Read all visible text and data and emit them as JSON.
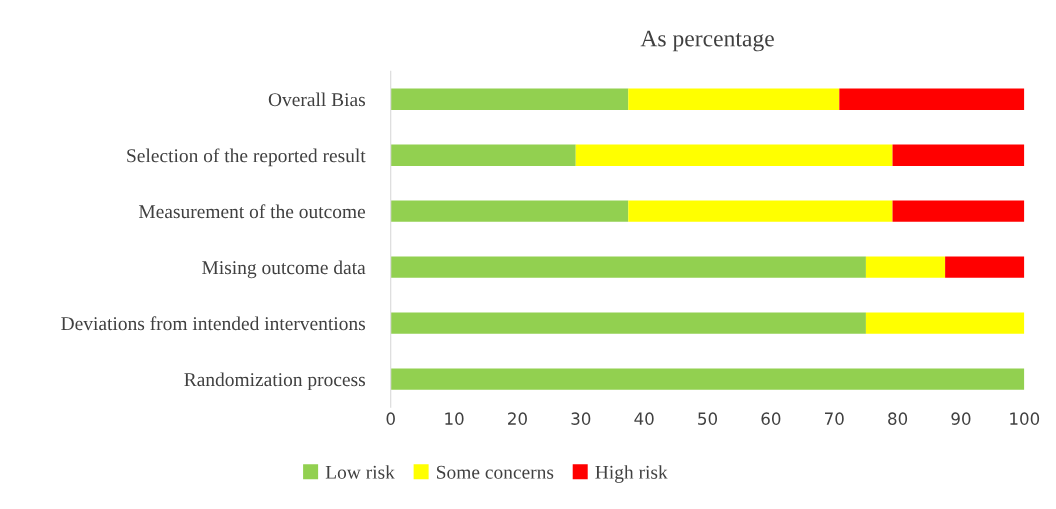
{
  "chart_data": {
    "type": "bar",
    "orientation": "horizontal",
    "stacked": true,
    "title": "As percentage",
    "categories": [
      "Overall Bias",
      "Selection of the reported result",
      "Measurement of the outcome",
      "Mising outcome data",
      "Deviations from intended interventions",
      "Randomization process"
    ],
    "series": [
      {
        "name": "Low risk",
        "color": "#92d050",
        "values": [
          37.5,
          29.2,
          37.5,
          75,
          75,
          100
        ]
      },
      {
        "name": "Some concerns",
        "color": "#ffff00",
        "values": [
          33.3,
          50,
          41.7,
          12.5,
          25,
          0
        ]
      },
      {
        "name": "High risk",
        "color": "#ff0000",
        "values": [
          29.2,
          20.8,
          20.8,
          12.5,
          0,
          0
        ]
      }
    ],
    "xlim": [
      0,
      100
    ],
    "xticks": [
      0,
      10,
      20,
      30,
      40,
      50,
      60,
      70,
      80,
      90,
      100
    ],
    "grid": false,
    "legend": "bottom"
  }
}
